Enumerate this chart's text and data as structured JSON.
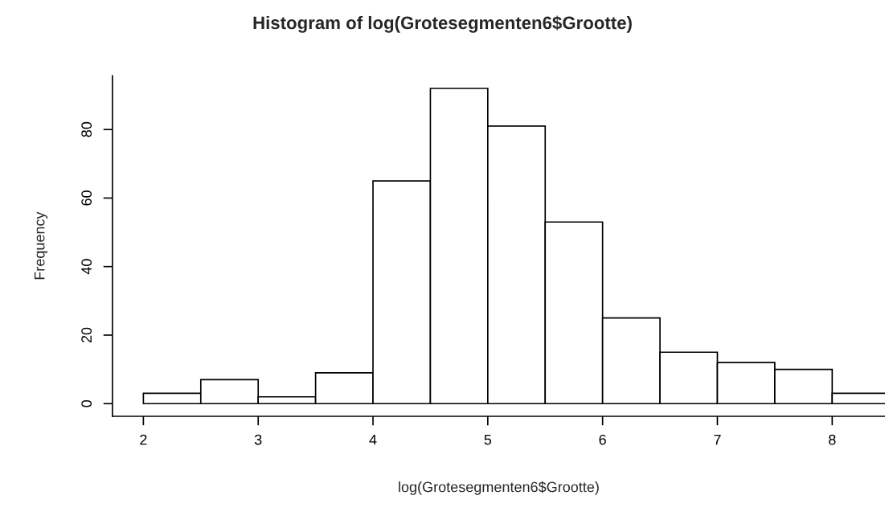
{
  "chart_data": {
    "type": "histogram",
    "title": "Histogram of log(Grotesegmenten6$Grootte)",
    "xlabel": "log(Grotesegmenten6$Grootte)",
    "ylabel": "Frequency",
    "bins": [
      2,
      2.5,
      3,
      3.5,
      4,
      4.5,
      5,
      5.5,
      6,
      6.5,
      7,
      7.5,
      8,
      8.5
    ],
    "values": [
      3,
      7,
      2,
      9,
      65,
      92,
      81,
      53,
      25,
      15,
      12,
      10,
      3
    ],
    "color": "#ffffff",
    "xlim": [
      1.73,
      8.46
    ],
    "xticks": [
      2,
      3,
      4,
      5,
      6,
      7,
      8
    ],
    "ylim": [
      -3.7,
      95.7
    ],
    "yticks": [
      0,
      20,
      40,
      60,
      80
    ],
    "grid": false,
    "legend": false
  }
}
